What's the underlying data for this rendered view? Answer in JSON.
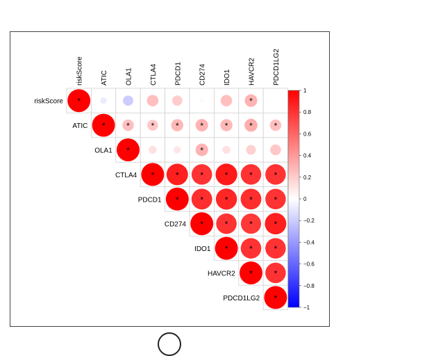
{
  "chart_data": {
    "type": "heatmap",
    "style": "correlation-circles-upper-triangle",
    "variables": [
      "riskScore",
      "ATIC",
      "OLA1",
      "CTLA4",
      "PDCD1",
      "CD274",
      "IDO1",
      "HAVCR2",
      "PDCD1LG2"
    ],
    "values": [
      [
        1.0,
        -0.08,
        -0.2,
        0.25,
        0.2,
        0.03,
        0.25,
        0.3,
        0.0
      ],
      [
        null,
        1.0,
        0.25,
        0.22,
        0.28,
        0.3,
        0.28,
        0.32,
        0.25
      ],
      [
        null,
        null,
        1.0,
        0.12,
        0.1,
        0.3,
        0.12,
        0.18,
        0.22
      ],
      [
        null,
        null,
        null,
        1.0,
        0.88,
        0.8,
        0.9,
        0.8,
        0.8
      ],
      [
        null,
        null,
        null,
        null,
        1.0,
        0.82,
        0.85,
        0.82,
        0.8
      ],
      [
        null,
        null,
        null,
        null,
        null,
        1.0,
        0.8,
        0.78,
        0.88
      ],
      [
        null,
        null,
        null,
        null,
        null,
        null,
        1.0,
        0.8,
        0.8
      ],
      [
        null,
        null,
        null,
        null,
        null,
        null,
        null,
        1.0,
        0.8
      ],
      [
        null,
        null,
        null,
        null,
        null,
        null,
        null,
        null,
        1.0
      ]
    ],
    "significance_marker": "*",
    "significant": [
      [
        true,
        false,
        false,
        false,
        false,
        false,
        false,
        true,
        false
      ],
      [
        null,
        true,
        true,
        true,
        true,
        true,
        true,
        true,
        true
      ],
      [
        null,
        null,
        true,
        false,
        false,
        true,
        false,
        false,
        false
      ],
      [
        null,
        null,
        null,
        true,
        true,
        true,
        true,
        true,
        true
      ],
      [
        null,
        null,
        null,
        null,
        true,
        true,
        true,
        true,
        true
      ],
      [
        null,
        null,
        null,
        null,
        null,
        true,
        true,
        true,
        true
      ],
      [
        null,
        null,
        null,
        null,
        null,
        null,
        true,
        true,
        true
      ],
      [
        null,
        null,
        null,
        null,
        null,
        null,
        null,
        true,
        true
      ],
      [
        null,
        null,
        null,
        null,
        null,
        null,
        null,
        null,
        true
      ]
    ],
    "colorbar": {
      "range": [
        -1,
        1
      ],
      "ticks": [
        1,
        0.8,
        0.6,
        0.4,
        0.2,
        0,
        -0.2,
        -0.4,
        -0.6,
        -0.8,
        -1
      ],
      "tick_labels": [
        "1",
        "0.8",
        "0.6",
        "0.4",
        "0.2",
        "0",
        "−0.2",
        "−0.4",
        "−0.6",
        "−0.8",
        "−1"
      ],
      "colors": {
        "negative": "#0000ff",
        "zero": "#ffffff",
        "positive": "#ff0000"
      }
    }
  }
}
